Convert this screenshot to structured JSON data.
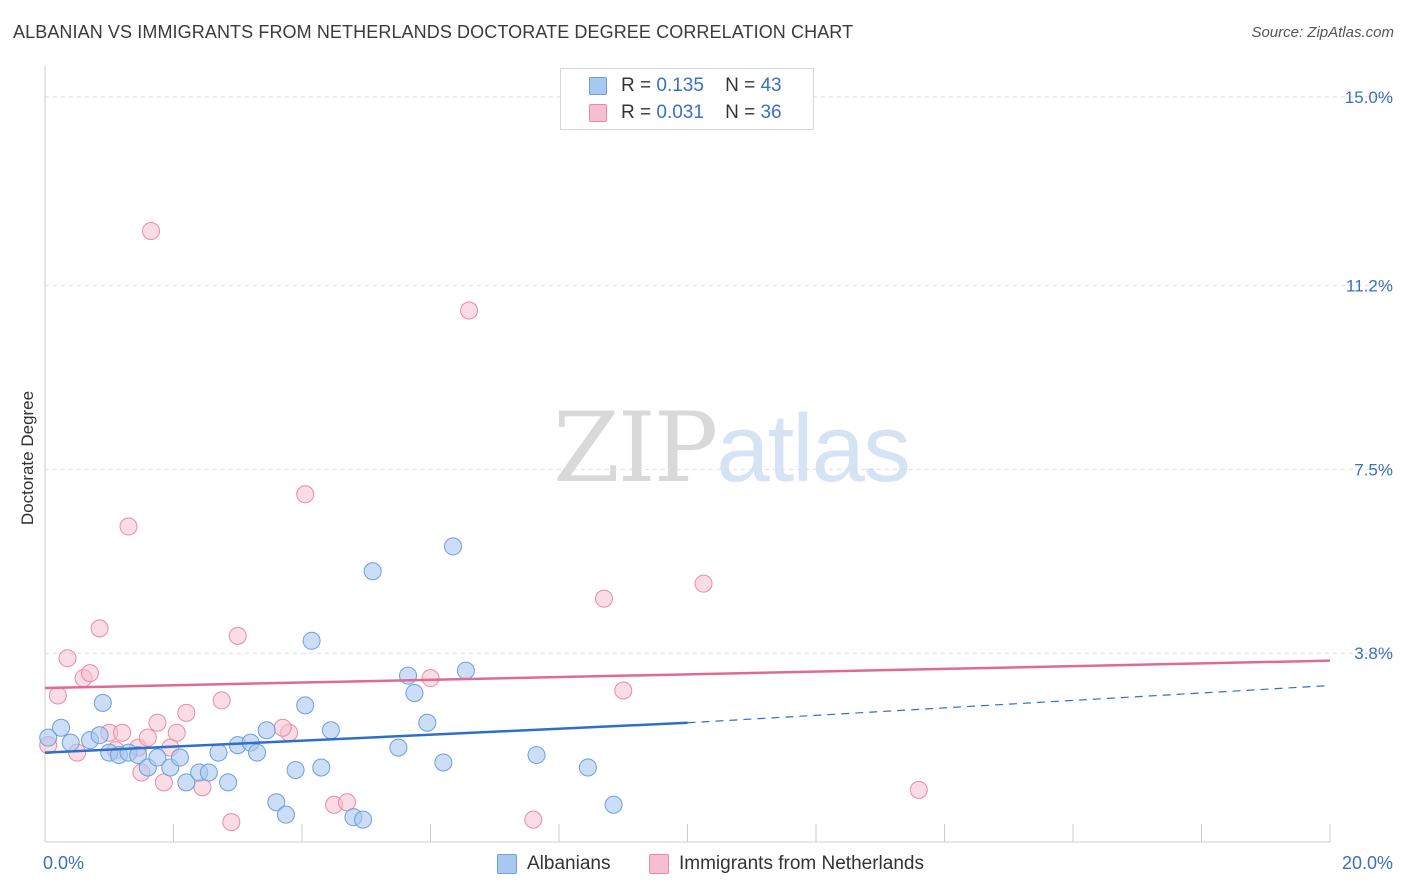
{
  "title": "ALBANIAN VS IMMIGRANTS FROM NETHERLANDS DOCTORATE DEGREE CORRELATION CHART",
  "source": "Source: ZipAtlas.com",
  "watermark": {
    "part1": "ZIP",
    "part2": "atlas"
  },
  "colors": {
    "blue_fill": "#a9c8f0",
    "blue_stroke": "#6d9fdf",
    "blue_line": "#2f6fcb",
    "pink_fill": "#f6bfd0",
    "pink_stroke": "#e98aa8",
    "pink_line": "#e06a95",
    "axis_label": "#3a6fc4",
    "grid": "#dddddd"
  },
  "legend": {
    "series1": {
      "r_label": "R =",
      "r_value": "0.135",
      "n_label": "N =",
      "n_value": "43"
    },
    "series2": {
      "r_label": "R =",
      "r_value": "0.031",
      "n_label": "N =",
      "n_value": "36"
    }
  },
  "bottom_legend": {
    "series1": "Albanians",
    "series2": "Immigrants from Netherlands"
  },
  "chart_data": {
    "type": "scatter",
    "title": "ALBANIAN VS IMMIGRANTS FROM NETHERLANDS DOCTORATE DEGREE CORRELATION CHART",
    "xlabel": "",
    "ylabel": "Doctorate Degree",
    "xlim": [
      0,
      20
    ],
    "ylim": [
      0,
      15.5
    ],
    "x_tick_labels": [
      "0.0%",
      "20.0%"
    ],
    "y_ticks": [
      3.8,
      7.5,
      11.2,
      15.0
    ],
    "y_tick_labels": [
      "3.8%",
      "7.5%",
      "11.2%",
      "15.0%"
    ],
    "grid": true,
    "series": [
      {
        "name": "Albanians",
        "R": 0.135,
        "N": 43,
        "points": [
          [
            0.05,
            2.1
          ],
          [
            0.25,
            2.3
          ],
          [
            0.4,
            2.0
          ],
          [
            0.7,
            2.05
          ],
          [
            0.85,
            2.15
          ],
          [
            0.9,
            2.8
          ],
          [
            1.0,
            1.8
          ],
          [
            1.15,
            1.75
          ],
          [
            1.3,
            1.8
          ],
          [
            1.45,
            1.75
          ],
          [
            1.6,
            1.5
          ],
          [
            1.75,
            1.7
          ],
          [
            1.95,
            1.5
          ],
          [
            2.1,
            1.7
          ],
          [
            2.2,
            1.2
          ],
          [
            2.4,
            1.4
          ],
          [
            2.55,
            1.4
          ],
          [
            2.7,
            1.8
          ],
          [
            2.85,
            1.2
          ],
          [
            3.0,
            1.95
          ],
          [
            3.2,
            2.0
          ],
          [
            3.3,
            1.8
          ],
          [
            3.45,
            2.25
          ],
          [
            3.6,
            0.8
          ],
          [
            3.75,
            0.55
          ],
          [
            3.9,
            1.45
          ],
          [
            4.05,
            2.75
          ],
          [
            4.15,
            4.05
          ],
          [
            4.3,
            1.5
          ],
          [
            4.45,
            2.25
          ],
          [
            4.8,
            0.5
          ],
          [
            4.95,
            0.45
          ],
          [
            5.1,
            5.45
          ],
          [
            5.5,
            1.9
          ],
          [
            5.65,
            3.35
          ],
          [
            5.75,
            3.0
          ],
          [
            5.95,
            2.4
          ],
          [
            6.2,
            1.6
          ],
          [
            6.35,
            5.95
          ],
          [
            6.55,
            3.45
          ],
          [
            7.65,
            1.75
          ],
          [
            8.45,
            1.5
          ],
          [
            8.85,
            0.75
          ]
        ],
        "trend": {
          "x": [
            0,
            10
          ],
          "y": [
            1.8,
            2.4
          ]
        },
        "trend_extension": {
          "x": [
            10,
            20
          ],
          "y": [
            2.4,
            3.15
          ]
        }
      },
      {
        "name": "Immigrants from Netherlands",
        "R": 0.031,
        "N": 36,
        "points": [
          [
            0.05,
            1.95
          ],
          [
            0.2,
            2.95
          ],
          [
            0.35,
            3.7
          ],
          [
            0.5,
            1.8
          ],
          [
            0.6,
            3.3
          ],
          [
            0.7,
            3.4
          ],
          [
            0.85,
            4.3
          ],
          [
            1.0,
            2.2
          ],
          [
            1.1,
            1.85
          ],
          [
            1.2,
            2.2
          ],
          [
            1.3,
            6.35
          ],
          [
            1.45,
            1.9
          ],
          [
            1.5,
            1.4
          ],
          [
            1.6,
            2.1
          ],
          [
            1.65,
            12.3
          ],
          [
            1.75,
            2.4
          ],
          [
            1.85,
            1.2
          ],
          [
            1.95,
            1.9
          ],
          [
            2.05,
            2.2
          ],
          [
            2.2,
            2.6
          ],
          [
            2.45,
            1.1
          ],
          [
            2.75,
            2.85
          ],
          [
            3.0,
            4.15
          ],
          [
            3.8,
            2.2
          ],
          [
            4.05,
            7.0
          ],
          [
            4.5,
            0.75
          ],
          [
            4.7,
            0.8
          ],
          [
            6.0,
            3.3
          ],
          [
            6.6,
            10.7
          ],
          [
            7.6,
            0.45
          ],
          [
            8.7,
            4.9
          ],
          [
            9.0,
            3.05
          ],
          [
            10.25,
            5.2
          ],
          [
            13.6,
            1.05
          ],
          [
            3.7,
            2.3
          ],
          [
            2.9,
            0.4
          ]
        ],
        "trend": {
          "x": [
            0,
            20
          ],
          "y": [
            3.1,
            3.65
          ]
        }
      }
    ]
  }
}
